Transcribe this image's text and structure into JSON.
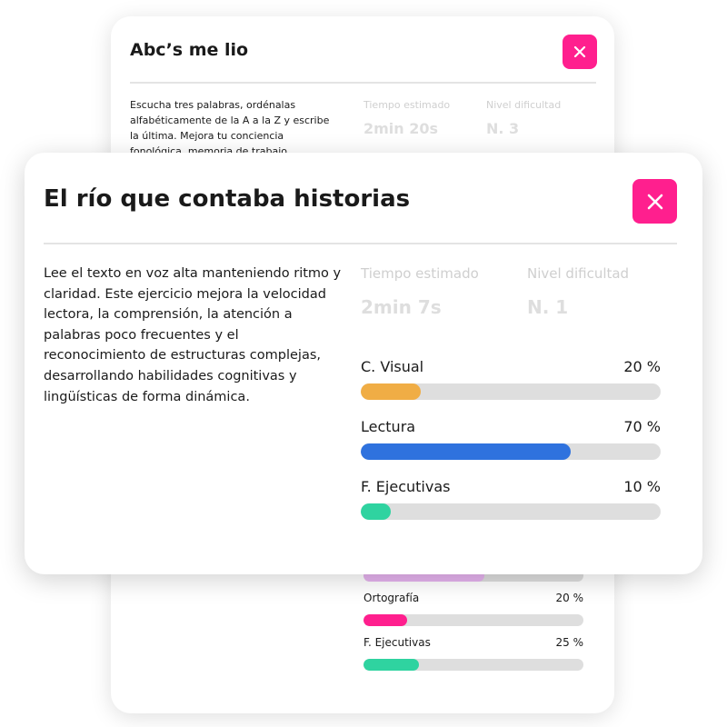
{
  "back_card": {
    "title": "Abc’s me lio",
    "description": "Escucha tres palabras, ordénalas alfabéticamente de la A a la Z y escribe la última. Mejora tu conciencia fonológica, memoria de trabajo",
    "time_label": "Tiempo estimado",
    "time_value": "2min 20s",
    "level_label": "Nivel dificultad",
    "level_value": "N. 3",
    "bars": [
      {
        "value": 55,
        "color": "#e6b3ef"
      },
      {
        "label": "Ortografía",
        "value": 20,
        "value_label": "20 %",
        "color": "#ff1f8e"
      },
      {
        "label": "F. Ejecutivas",
        "value": 25,
        "value_label": "25 %",
        "color": "#2fd3a0"
      }
    ]
  },
  "front_card": {
    "title": "El río que contaba historias",
    "description": "Lee el texto en voz alta manteniendo ritmo y claridad. Este ejercicio mejora la velocidad lectora, la comprensión, la atención a palabras poco frecuentes y el reconocimiento de estructuras complejas, desarrollando habilidades cognitivas y lingüísticas de forma dinámica.",
    "time_label": "Tiempo estimado",
    "time_value": "2min 7s",
    "level_label": "Nivel dificultad",
    "level_value": "N. 1",
    "bars": [
      {
        "label": "C. Visual",
        "value": 20,
        "value_label": "20 %",
        "color": "#f0ad45"
      },
      {
        "label": "Lectura",
        "value": 70,
        "value_label": "70 %",
        "color": "#2f72de"
      },
      {
        "label": "F. Ejecutivas",
        "value": 10,
        "value_label": "10 %",
        "color": "#2fd3a0"
      }
    ]
  }
}
